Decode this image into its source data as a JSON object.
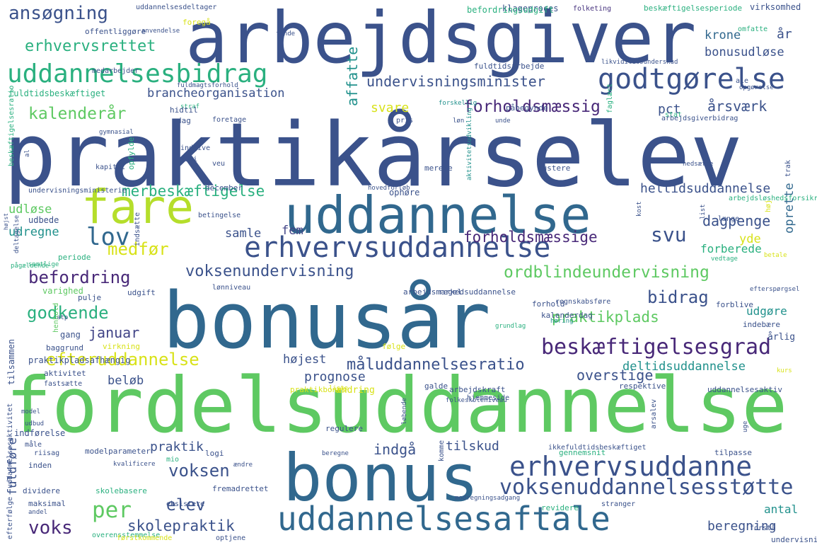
{
  "palette": {
    "navy": "#3b528b",
    "darkpurple": "#482878",
    "purple": "#46327e",
    "blue": "#31688e",
    "teal": "#21918c",
    "seagreen": "#2ab07f",
    "green": "#5ec962",
    "lime": "#b5de2b",
    "yellow": "#d8e219",
    "slate": "#414487"
  },
  "words": [
    "praktikårselev",
    "arbejdsgiver",
    "bonusår",
    "fordelsuddannelse",
    "bonus",
    "uddannelse",
    "fare",
    "uddannelsesaftale",
    "uddannelsesbidrag",
    "godtgørelse",
    "erhvervsuddannelse",
    "erhvervsuddanne",
    "voksenuddannelsesstøtte",
    "ansøgning",
    "erhvervsrettet",
    "undervisningsminister",
    "brancheorganisation",
    "kalenderår",
    "forholdsmæssig",
    "årsværk",
    "pct",
    "svare",
    "affatte",
    "krone",
    "år",
    "bonusudløse",
    "merbeskæftigelse",
    "heltidsuddannelse",
    "forholdsmæssige",
    "dagpenge",
    "udløse",
    "udregne",
    "medfør",
    "lov",
    "svu",
    "samle",
    "fem",
    "voksenundervisning",
    "ordblindeundervisning",
    "oprette",
    "yde",
    "befordring",
    "forberede",
    "godkende",
    "bidrag",
    "praktikplads",
    "januar",
    "beskæftigelsesgrad",
    "efteruddannelse",
    "højest",
    "måluddannelsesratio",
    "prognose",
    "overstige",
    "deltidsuddannelse",
    "beløb",
    "per",
    "voksen",
    "elev",
    "voks",
    "skolepraktik",
    "fuldføre",
    "praktik",
    "indgå",
    "tilskud",
    "beregning",
    "antal",
    "udgøre",
    "uddannelsesdeltager",
    "foregå",
    "klageproces",
    "folketing",
    "befordringsudgift",
    "beskæftigelsesperiode",
    "virksomhed",
    "offentliggøre",
    "anvendelse",
    "finde",
    "omfatte",
    "medarbejder",
    "fuldtidsarbejde",
    "likviditetsunderskud",
    "ale",
    "fuldtidsbeskæftiget",
    "fuldmagtsforhold",
    "stat",
    "opgørelse",
    "beskæftigelsesratio",
    "straf",
    "hidtil",
    "påbegynde",
    "forskellig",
    "faglært",
    "arbejdsgiverbidrag",
    "dag",
    "foretage",
    "pris",
    "løn",
    "unde",
    "gymnasial",
    "opfylde",
    "indgive",
    "juni",
    "aktivitetsudvikling",
    "al",
    "kapitel",
    "veu",
    "merete",
    "justere",
    "nedsætte",
    "trak",
    "undervisningsministerie",
    "december",
    "hovedforløb",
    "ophøre",
    "arbejdsløshedsforsikring",
    "list",
    "udbede",
    "deltagelse",
    "periode",
    "indsætte",
    "betingelse",
    "kost",
    "længe",
    "høj",
    "pågældende",
    "samtlige",
    "vedtage",
    "betale",
    "varighed",
    "pulje",
    "udgift",
    "regel",
    "lønniveau",
    "arbejdsmarkedsuddannelse",
    "efterspørgsel",
    "forhold",
    "regnskabsføre",
    "forblive",
    "kalenderdag",
    "atp",
    "høring",
    "grundlag",
    "indebære",
    "gang",
    "henhold",
    "årlig",
    "baggrund",
    "virkning",
    "tilsammen",
    "praktikpladsafhængig",
    "følge",
    "aktivitet",
    "fastsætte",
    "praktikbonus",
    "liste",
    "galde",
    "arbejdskraft",
    "ændring",
    "hjemmeside",
    "respektive",
    "folkeskoleniveau",
    "kurs",
    "uddannelsesaktiv",
    "model",
    "udbud",
    "regulere",
    "løbende",
    "arsalev",
    "uge",
    "indførelse",
    "måle",
    "modelparameter",
    "logi",
    "ikkefuldtidsbeskæftiget",
    "gennemsnit",
    "tilpasse",
    "riisag",
    "kvalificere",
    "mio",
    "beregne",
    "inden",
    "komme",
    "ændre",
    "dividere",
    "skolebasere",
    "fremadrettet",
    "maksimal",
    "eksistere",
    "modregningsadgang",
    "stranger",
    "andel",
    "revidere",
    "forstå",
    "overensstemmelse",
    "førstkommende",
    "optjene",
    "undervisning",
    "uddannelsesaktivitet",
    "efterfølge",
    "højst"
  ]
}
